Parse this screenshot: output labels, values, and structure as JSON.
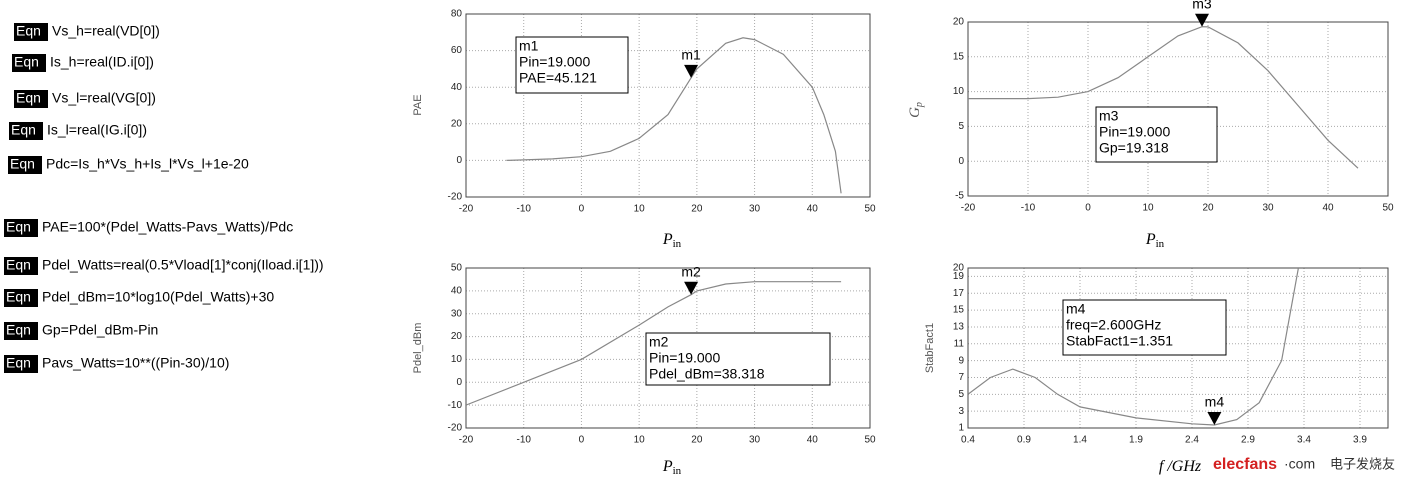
{
  "equations": [
    {
      "tag": "Eqn",
      "text": "Vs_h=real(VD[0])"
    },
    {
      "tag": "Eqn",
      "text": "Is_h=real(ID.i[0])"
    },
    {
      "tag": "Eqn",
      "text": "Vs_l=real(VG[0])"
    },
    {
      "tag": "Eqn",
      "text": "Is_l=real(IG.i[0])"
    },
    {
      "tag": "Eqn",
      "text": "Pdc=Is_h*Vs_h+Is_l*Vs_l+1e-20"
    },
    {
      "tag": "Eqn",
      "text": "PAE=100*(Pdel_Watts-Pavs_Watts)/Pdc"
    },
    {
      "tag": "Eqn",
      "text": "Pdel_Watts=real(0.5*Vload[1]*conj(Iload.i[1]))"
    },
    {
      "tag": "Eqn",
      "text": "Pdel_dBm=10*log10(Pdel_Watts)+30"
    },
    {
      "tag": "Eqn",
      "text": "Gp=Pdel_dBm-Pin"
    },
    {
      "tag": "Eqn",
      "text": "Pavs_Watts=10**((Pin-30)/10)"
    }
  ],
  "watermark": {
    "brand": "elecfans",
    "suffix": "·com",
    "site": "电子发烧友"
  },
  "chart_data": [
    {
      "type": "line",
      "y_label": "PAE",
      "x_label": "P",
      "x_label_sub": "in",
      "x": [
        -13,
        -10,
        -5,
        0,
        5,
        10,
        15,
        19,
        20,
        25,
        28,
        30,
        35,
        40,
        42,
        44,
        45
      ],
      "series": [
        {
          "color": "#888888",
          "values": [
            0,
            0.3,
            0.8,
            2,
            5,
            12,
            25,
            45.121,
            50,
            64,
            67,
            66,
            58,
            40,
            25,
            5,
            -18
          ]
        }
      ],
      "xlim": [
        -20,
        50
      ],
      "xticks": [
        -20,
        -10,
        0,
        10,
        20,
        30,
        40,
        50
      ],
      "ylim": [
        -20,
        80
      ],
      "yticks": [
        -20,
        0,
        20,
        40,
        60,
        80
      ],
      "grid": true,
      "markers": [
        {
          "name": "m1",
          "x": 19,
          "y": 45.121,
          "box_lines": [
            "Pin=19.000",
            "PAE=45.121"
          ]
        }
      ]
    },
    {
      "type": "line",
      "y_label": "G",
      "y_label_sub": "p",
      "x_label": "P",
      "x_label_sub": "in",
      "x": [
        -20,
        -10,
        -5,
        0,
        5,
        10,
        15,
        19,
        20,
        25,
        30,
        35,
        40,
        45
      ],
      "series": [
        {
          "color": "#888888",
          "values": [
            9,
            9,
            9.2,
            10,
            12,
            15,
            18,
            19.318,
            19.3,
            17,
            13,
            8,
            3,
            -1
          ]
        }
      ],
      "xlim": [
        -20,
        50
      ],
      "xticks": [
        -20,
        -10,
        0,
        10,
        20,
        30,
        40,
        50
      ],
      "ylim": [
        -5,
        20
      ],
      "yticks": [
        -5,
        0,
        5,
        10,
        15,
        20
      ],
      "grid": true,
      "markers": [
        {
          "name": "m3",
          "x": 19,
          "y": 19.318,
          "box_lines": [
            "Pin=19.000",
            "Gp=19.318"
          ]
        }
      ]
    },
    {
      "type": "line",
      "y_label": "Pdel_dBm",
      "x_label": "P",
      "x_label_sub": "in",
      "x": [
        -20,
        -10,
        0,
        10,
        15,
        19,
        20,
        25,
        30,
        45
      ],
      "series": [
        {
          "color": "#888888",
          "values": [
            -10,
            0,
            10,
            25,
            33,
            38.318,
            40,
            43,
            44,
            44
          ]
        }
      ],
      "xlim": [
        -20,
        50
      ],
      "xticks": [
        -20,
        -10,
        0,
        10,
        20,
        30,
        40,
        50
      ],
      "ylim": [
        -20,
        50
      ],
      "yticks": [
        -20,
        -10,
        0,
        10,
        20,
        30,
        40,
        50
      ],
      "grid": true,
      "markers": [
        {
          "name": "m2",
          "x": 19,
          "y": 38.318,
          "box_lines": [
            "Pin=19.000",
            "Pdel_dBm=38.318"
          ]
        }
      ]
    },
    {
      "type": "line",
      "y_label": "StabFact1",
      "x_label": "f /GHz",
      "x": [
        0.4,
        0.6,
        0.8,
        1.0,
        1.2,
        1.4,
        1.9,
        2.4,
        2.6,
        2.8,
        3.0,
        3.2,
        3.35
      ],
      "series": [
        {
          "color": "#888888",
          "values": [
            5,
            7,
            8,
            7,
            5,
            3.5,
            2.2,
            1.5,
            1.351,
            2,
            4,
            9,
            20
          ]
        }
      ],
      "xlim": [
        0.4,
        4.15
      ],
      "xticks": [
        0.4,
        0.9,
        1.4,
        1.9,
        2.4,
        2.9,
        3.4,
        3.9
      ],
      "ylim": [
        1,
        20
      ],
      "yticks": [
        1,
        3,
        5,
        7,
        9,
        11,
        13,
        15,
        17,
        19,
        20
      ],
      "grid": true,
      "markers": [
        {
          "name": "m4",
          "x": 2.6,
          "y": 1.351,
          "box_lines": [
            "freq=2.600GHz",
            "StabFact1=1.351"
          ]
        }
      ]
    }
  ]
}
